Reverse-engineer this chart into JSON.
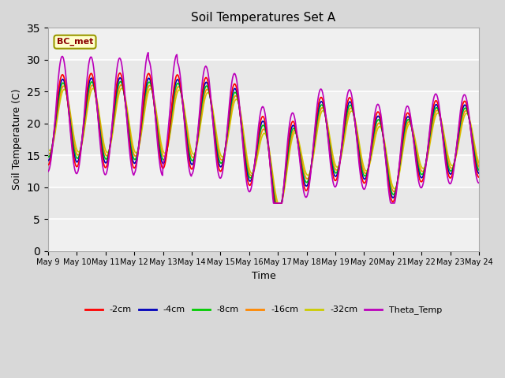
{
  "title": "Soil Temperatures Set A",
  "xlabel": "Time",
  "ylabel": "Soil Temperature (C)",
  "ylim": [
    0,
    35
  ],
  "yticks": [
    0,
    5,
    10,
    15,
    20,
    25,
    30,
    35
  ],
  "annotation": "BC_met",
  "colors": {
    "-2cm": "#ff0000",
    "-4cm": "#0000bb",
    "-8cm": "#00cc00",
    "-16cm": "#ff8800",
    "-32cm": "#cccc00",
    "Theta_Temp": "#bb00bb"
  },
  "legend_labels": [
    "-2cm",
    "-4cm",
    "-8cm",
    "-16cm",
    "-32cm",
    "Theta_Temp"
  ],
  "xtick_labels": [
    "May 9",
    "May 10",
    "May 11",
    "May 12",
    "May 13",
    "May 14",
    "May 15",
    "May 16",
    "May 17",
    "May 18",
    "May 19",
    "May 20",
    "May 21",
    "May 22",
    "May 23",
    "May 24"
  ],
  "background_color": "#d8d8d8",
  "plot_bg_color": "#e8e8e8",
  "inner_bg_color": "#f0f0f0",
  "grid_color": "#ffffff",
  "figsize": [
    6.4,
    4.8
  ],
  "dpi": 100
}
